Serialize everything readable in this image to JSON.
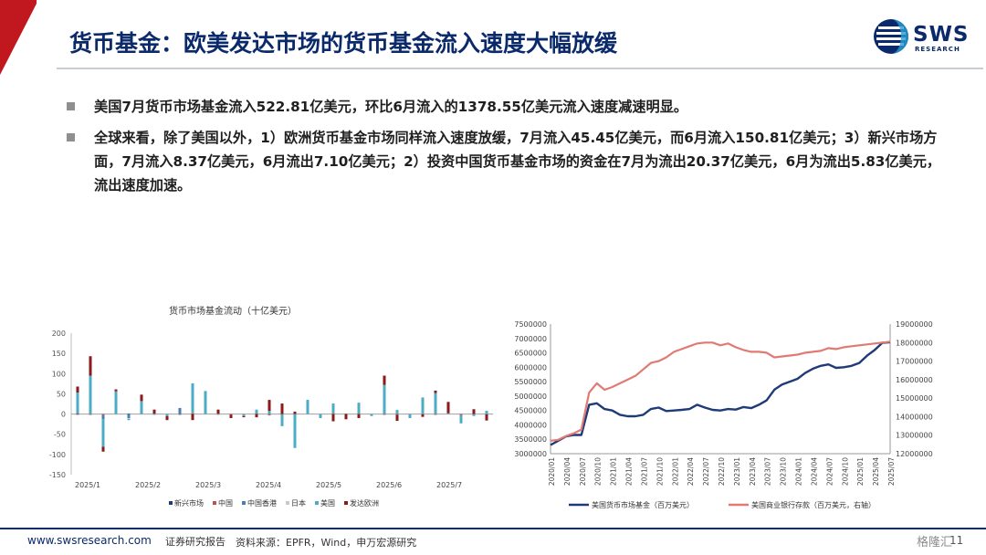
{
  "header": {
    "title": "货币基金：欧美发达市场的货币基金流入速度大幅放缓",
    "logo_text": "SWS",
    "logo_sub": "RESEARCH"
  },
  "bullets": [
    "美国7月货币市场基金流入522.81亿美元，环比6月流入的1378.55亿美元流入速度减速明显。",
    "全球来看，除了美国以外，1）欧洲货币基金市场同样流入速度放缓，7月流入45.45亿美元，而6月流入150.81亿美元；3）新兴市场方面，7月流入8.37亿美元，6月流出7.10亿美元；2）投资中国货币基金市场的资金在7月为流出20.37亿美元，6月为流出5.83亿美元，流出速度加速。"
  ],
  "chart_data": [
    {
      "type": "bar",
      "title": "货币市场基金流动（十亿美元）",
      "ylim": [
        -150,
        200
      ],
      "yticks": [
        -150,
        -100,
        -50,
        0,
        50,
        100,
        150,
        200
      ],
      "x_tick_labels": [
        "2025/1",
        "2025/2",
        "2025/3",
        "2025/4",
        "2025/5",
        "2025/6",
        "2025/7"
      ],
      "legend_position": "bottom",
      "series": [
        {
          "name": "新兴市场",
          "color": "#1f3a78"
        },
        {
          "name": "中国",
          "color": "#c0504d"
        },
        {
          "name": "中国香港",
          "color": "#4a7ebb"
        },
        {
          "name": "日本",
          "color": "#c9c9c9"
        },
        {
          "name": "美国",
          "color": "#4bacc6"
        },
        {
          "name": "发达欧洲",
          "color": "#8b1a1a"
        }
      ],
      "weeks": [
        [
          1,
          -2,
          0,
          0,
          52,
          15
        ],
        [
          0,
          -2,
          0,
          0,
          95,
          48
        ],
        [
          0,
          -3,
          -10,
          0,
          -68,
          -12
        ],
        [
          0,
          0,
          0,
          0,
          56,
          5
        ],
        [
          1,
          0,
          -10,
          -2,
          -3,
          0
        ],
        [
          0,
          0,
          0,
          0,
          32,
          16
        ],
        [
          0,
          1,
          0,
          0,
          -2,
          10
        ],
        [
          0,
          0,
          0,
          0,
          -5,
          -10
        ],
        [
          0,
          -2,
          15,
          0,
          0,
          0
        ],
        [
          0,
          2,
          0,
          0,
          74,
          -15
        ],
        [
          0,
          0,
          0,
          0,
          57,
          0
        ],
        [
          0,
          1,
          0,
          0,
          -2,
          10
        ],
        [
          0,
          -2,
          0,
          0,
          0,
          -8
        ],
        [
          0,
          0,
          0,
          0,
          -5,
          -3
        ],
        [
          0,
          1,
          0,
          0,
          10,
          -8
        ],
        [
          0,
          -3,
          0,
          0,
          8,
          27
        ],
        [
          0,
          0,
          0,
          0,
          -30,
          26
        ],
        [
          0,
          0,
          0,
          0,
          -84,
          6
        ],
        [
          0,
          0,
          0,
          0,
          35,
          0
        ],
        [
          0,
          0,
          0,
          0,
          -10,
          0
        ],
        [
          0,
          1,
          0,
          0,
          25,
          -18
        ],
        [
          0,
          0,
          0,
          0,
          1,
          -13
        ],
        [
          0,
          0,
          0,
          0,
          28,
          -10
        ],
        [
          0,
          0,
          0,
          0,
          -5,
          0
        ],
        [
          0,
          -2,
          0,
          0,
          72,
          23
        ],
        [
          0,
          -2,
          0,
          0,
          10,
          -15
        ],
        [
          0,
          0,
          0,
          0,
          -10,
          0
        ],
        [
          0,
          -1,
          0,
          0,
          41,
          -6
        ],
        [
          0,
          -2,
          0,
          0,
          52,
          6
        ],
        [
          0,
          0,
          0,
          0,
          2,
          28
        ],
        [
          0,
          -3,
          0,
          0,
          -20,
          0
        ],
        [
          0,
          0,
          0,
          0,
          -5,
          12
        ],
        [
          0,
          -1,
          0,
          0,
          8,
          -15
        ]
      ]
    },
    {
      "type": "line",
      "x_tick_labels": [
        "2020/01",
        "2020/04",
        "2020/07",
        "2020/10",
        "2021/01",
        "2021/04",
        "2021/07",
        "2021/10",
        "2022/01",
        "2022/04",
        "2022/07",
        "2022/10",
        "2023/01",
        "2023/04",
        "2023/07",
        "2023/10",
        "2024/01",
        "2024/04",
        "2024/07",
        "2024/10",
        "2025/01",
        "2025/04",
        "2025/07"
      ],
      "ylim_left": [
        3000000,
        7500000
      ],
      "yticks_left": [
        3000000,
        3500000,
        4000000,
        4500000,
        5000000,
        5500000,
        6000000,
        6500000,
        7000000,
        7500000
      ],
      "ylim_right": [
        12000000,
        19000000
      ],
      "yticks_right": [
        12000000,
        13000000,
        14000000,
        15000000,
        16000000,
        17000000,
        18000000,
        19000000
      ],
      "legend_position": "bottom",
      "series": [
        {
          "name": "美国货币市场基金（百万美元）",
          "axis": "left",
          "color": "#1f3a78",
          "values": [
            3300000,
            3450000,
            3600000,
            3650000,
            3650000,
            4700000,
            4750000,
            4550000,
            4500000,
            4350000,
            4300000,
            4300000,
            4350000,
            4550000,
            4600000,
            4480000,
            4500000,
            4520000,
            4550000,
            4700000,
            4600000,
            4520000,
            4500000,
            4550000,
            4530000,
            4620000,
            4580000,
            4700000,
            4850000,
            5220000,
            5400000,
            5500000,
            5600000,
            5800000,
            5950000,
            6050000,
            6100000,
            5980000,
            6000000,
            6050000,
            6150000,
            6400000,
            6600000,
            6850000,
            6870000
          ]
        },
        {
          "name": "美国商业银行存款（百万美元，右轴）",
          "axis": "right",
          "color": "#e07a72",
          "values": [
            12700000,
            12750000,
            12950000,
            13100000,
            13300000,
            15300000,
            15800000,
            15450000,
            15600000,
            15800000,
            16000000,
            16200000,
            16550000,
            16900000,
            17000000,
            17200000,
            17500000,
            17650000,
            17800000,
            17950000,
            18000000,
            18000000,
            17850000,
            17950000,
            17750000,
            17600000,
            17500000,
            17500000,
            17450000,
            17200000,
            17250000,
            17300000,
            17350000,
            17450000,
            17500000,
            17550000,
            17700000,
            17650000,
            17750000,
            17800000,
            17850000,
            17900000,
            17950000,
            18000000,
            18050000
          ]
        }
      ]
    }
  ],
  "footer": {
    "url": "www.swsresearch.com",
    "tag": "证券研究报告",
    "source": "资料来源：EPFR，Wind，申万宏源研究",
    "watermark": "格隆汇",
    "page": "11"
  }
}
